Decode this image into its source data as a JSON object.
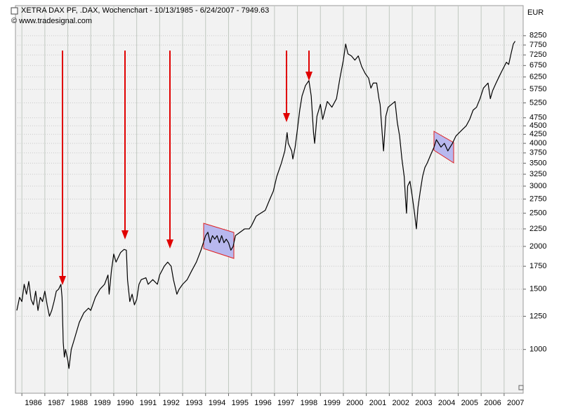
{
  "chart_data": {
    "type": "line",
    "title": "XETRA DAX PF, .DAX, Wochenchart - 10/13/1985 - 6/24/2007 - 7949.63",
    "subtitle": "© www.tradesignal.com",
    "y_axis_label": "EUR",
    "log_scale": true,
    "grid": true,
    "xlim": [
      1985.72,
      2007.83
    ],
    "xticks": [
      1986,
      1987,
      1988,
      1989,
      1990,
      1991,
      1992,
      1993,
      1994,
      1995,
      1996,
      1997,
      1998,
      1999,
      2000,
      2001,
      2002,
      2003,
      2004,
      2005,
      2006,
      2007
    ],
    "ylim": [
      745,
      10100
    ],
    "yticks": [
      1000,
      1250,
      1500,
      1750,
      2000,
      2250,
      2500,
      2750,
      3000,
      3250,
      3500,
      3750,
      4000,
      4250,
      4500,
      4750,
      5250,
      5750,
      6250,
      6750,
      7250,
      7750,
      8250
    ],
    "x": [
      1985.78,
      1985.9,
      1986.0,
      1986.1,
      1986.2,
      1986.3,
      1986.4,
      1986.5,
      1986.6,
      1986.7,
      1986.8,
      1986.9,
      1987.0,
      1987.1,
      1987.2,
      1987.3,
      1987.4,
      1987.5,
      1987.6,
      1987.7,
      1987.75,
      1987.8,
      1987.85,
      1987.9,
      1988.0,
      1988.05,
      1988.15,
      1988.3,
      1988.5,
      1988.7,
      1988.9,
      1989.0,
      1989.2,
      1989.4,
      1989.6,
      1989.75,
      1989.8,
      1989.9,
      1990.0,
      1990.1,
      1990.3,
      1990.45,
      1990.55,
      1990.6,
      1990.7,
      1990.8,
      1990.9,
      1991.0,
      1991.1,
      1991.2,
      1991.4,
      1991.5,
      1991.7,
      1991.9,
      1992.0,
      1992.2,
      1992.35,
      1992.5,
      1992.6,
      1992.75,
      1992.85,
      1993.0,
      1993.2,
      1993.4,
      1993.6,
      1993.8,
      1994.0,
      1994.1,
      1994.2,
      1994.3,
      1994.4,
      1994.5,
      1994.6,
      1994.7,
      1994.8,
      1994.9,
      1995.0,
      1995.1,
      1995.2,
      1995.3,
      1995.5,
      1995.7,
      1995.9,
      1996.0,
      1996.2,
      1996.4,
      1996.6,
      1996.8,
      1996.95,
      1997.1,
      1997.3,
      1997.45,
      1997.55,
      1997.6,
      1997.75,
      1997.8,
      1997.9,
      1998.0,
      1998.1,
      1998.2,
      1998.35,
      1998.5,
      1998.6,
      1998.7,
      1998.75,
      1998.85,
      1999.0,
      1999.1,
      1999.3,
      1999.5,
      1999.7,
      1999.85,
      2000.0,
      2000.1,
      2000.2,
      2000.35,
      2000.5,
      2000.65,
      2000.8,
      2000.95,
      2001.1,
      2001.2,
      2001.3,
      2001.45,
      2001.55,
      2001.6,
      2001.7,
      2001.75,
      2001.85,
      2001.95,
      2002.1,
      2002.25,
      2002.35,
      2002.45,
      2002.55,
      2002.65,
      2002.7,
      2002.75,
      2002.8,
      2002.9,
      2003.0,
      2003.1,
      2003.18,
      2003.25,
      2003.35,
      2003.45,
      2003.55,
      2003.65,
      2003.8,
      2003.95,
      2004.05,
      2004.15,
      2004.25,
      2004.4,
      2004.55,
      2004.65,
      2004.75,
      2004.9,
      2005.05,
      2005.2,
      2005.35,
      2005.5,
      2005.65,
      2005.8,
      2005.95,
      2006.1,
      2006.3,
      2006.4,
      2006.5,
      2006.65,
      2006.8,
      2006.95,
      2007.1,
      2007.2,
      2007.3,
      2007.4,
      2007.48
    ],
    "series": [
      {
        "name": "DAX",
        "color": "#000000",
        "values": [
          1300,
          1420,
          1380,
          1550,
          1450,
          1580,
          1400,
          1350,
          1480,
          1300,
          1420,
          1380,
          1480,
          1350,
          1250,
          1300,
          1380,
          1480,
          1500,
          1550,
          1420,
          1050,
          950,
          1000,
          930,
          880,
          1000,
          1080,
          1200,
          1280,
          1320,
          1300,
          1420,
          1500,
          1550,
          1650,
          1450,
          1700,
          1900,
          1800,
          1920,
          1960,
          1950,
          1600,
          1380,
          1450,
          1350,
          1400,
          1550,
          1600,
          1620,
          1550,
          1600,
          1550,
          1650,
          1750,
          1800,
          1750,
          1600,
          1450,
          1500,
          1550,
          1600,
          1700,
          1800,
          1950,
          2150,
          2200,
          2050,
          2150,
          2100,
          2150,
          2050,
          2150,
          2050,
          2100,
          2050,
          1950,
          2000,
          2150,
          2200,
          2250,
          2250,
          2300,
          2450,
          2500,
          2550,
          2750,
          2900,
          3200,
          3500,
          3800,
          4300,
          4000,
          3800,
          3600,
          3900,
          4400,
          5000,
          5500,
          5900,
          6100,
          5500,
          4300,
          4000,
          4800,
          5200,
          4700,
          5300,
          5100,
          5400,
          6200,
          7000,
          7800,
          7300,
          7200,
          7000,
          7200,
          6700,
          6400,
          6200,
          5800,
          6000,
          6000,
          5400,
          5200,
          4200,
          3800,
          4800,
          5100,
          5200,
          5300,
          4600,
          4200,
          3600,
          3200,
          2800,
          2500,
          3000,
          3100,
          2800,
          2500,
          2250,
          2600,
          2900,
          3200,
          3400,
          3500,
          3700,
          3900,
          4100,
          4000,
          3900,
          4000,
          3800,
          3900,
          4000,
          4200,
          4300,
          4400,
          4500,
          4700,
          5000,
          5100,
          5400,
          5800,
          6000,
          5400,
          5700,
          6000,
          6300,
          6600,
          6900,
          6800,
          7300,
          7800,
          7950
        ]
      }
    ]
  }
}
